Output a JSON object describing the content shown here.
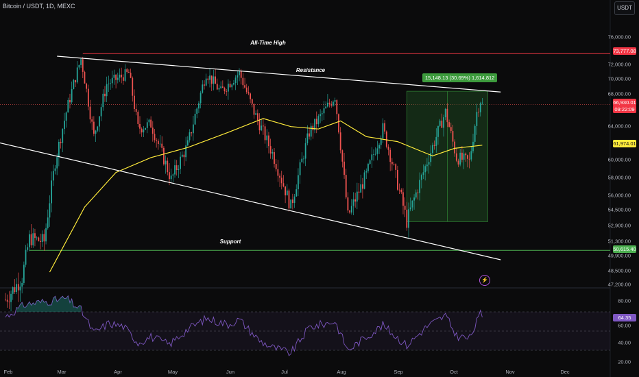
{
  "header": {
    "title": "Bitcoin / USDT, 1D, MEXC",
    "currency": "USDT"
  },
  "annotations": {
    "ath": "All-Time High",
    "resistance": "Resistance",
    "support": "Support",
    "measure": "15,148.13 (30.69%) 1,614,812"
  },
  "price_badges": {
    "ath": "73,777.08",
    "last": "66,930.01",
    "countdown": "09:22:09",
    "ma": "61,974.01",
    "support": "50,615.40",
    "rsi": "64.35"
  },
  "colors": {
    "up": "#26a69a",
    "down": "#ef5350",
    "ma": "#ffeb3b",
    "ath_line": "#f23645",
    "support_line": "#4caf50",
    "rsi_line": "#7e57c2",
    "measure_box": "#2e7d32"
  },
  "chart_data": [
    {
      "type": "candlestick",
      "title": "Bitcoin / USDT, 1D, MEXC",
      "x_tick_labels": [
        "Feb",
        "Mar",
        "Apr",
        "May",
        "Jun",
        "Jul",
        "Aug",
        "Sep",
        "Oct",
        "Nov",
        "Dec"
      ],
      "y_tick_labels": [
        "76,000.00",
        "72,000.00",
        "70,000.00",
        "68,000.00",
        "64,000.00",
        "60,000.00",
        "58,000.00",
        "56,000.00",
        "54,500.00",
        "52,900.00",
        "51,300.00",
        "49,900.00",
        "48,500.00",
        "47,200.00"
      ],
      "close_path": [
        [
          "2024-02-01",
          46000
        ],
        [
          "2024-02-10",
          48000
        ],
        [
          "2024-02-14",
          51800
        ],
        [
          "2024-02-22",
          51500
        ],
        [
          "2024-02-28",
          60000
        ],
        [
          "2024-03-05",
          66000
        ],
        [
          "2024-03-13",
          73000
        ],
        [
          "2024-03-20",
          63000
        ],
        [
          "2024-03-27",
          69500
        ],
        [
          "2024-04-08",
          71000
        ],
        [
          "2024-04-13",
          64000
        ],
        [
          "2024-04-20",
          64500
        ],
        [
          "2024-05-01",
          58000
        ],
        [
          "2024-05-10",
          62000
        ],
        [
          "2024-05-20",
          71000
        ],
        [
          "2024-05-28",
          68500
        ],
        [
          "2024-06-07",
          71000
        ],
        [
          "2024-06-15",
          66000
        ],
        [
          "2024-06-25",
          61000
        ],
        [
          "2024-07-05",
          55000
        ],
        [
          "2024-07-15",
          63500
        ],
        [
          "2024-07-29",
          68000
        ],
        [
          "2024-08-05",
          54000
        ],
        [
          "2024-08-15",
          58500
        ],
        [
          "2024-08-24",
          64000
        ],
        [
          "2024-09-06",
          53500
        ],
        [
          "2024-09-17",
          60000
        ],
        [
          "2024-09-27",
          66000
        ],
        [
          "2024-10-03",
          60500
        ],
        [
          "2024-10-10",
          60000
        ],
        [
          "2024-10-14",
          66000
        ],
        [
          "2024-10-16",
          67500
        ],
        [
          "2024-10-17",
          66930
        ]
      ],
      "moving_average": [
        [
          "2024-02-25",
          48500
        ],
        [
          "2024-03-15",
          55000
        ],
        [
          "2024-04-01",
          58800
        ],
        [
          "2024-04-20",
          60500
        ],
        [
          "2024-05-10",
          61700
        ],
        [
          "2024-06-01",
          63500
        ],
        [
          "2024-06-20",
          65200
        ],
        [
          "2024-07-05",
          64200
        ],
        [
          "2024-07-20",
          63900
        ],
        [
          "2024-08-01",
          64900
        ],
        [
          "2024-08-15",
          63000
        ],
        [
          "2024-09-01",
          62400
        ],
        [
          "2024-09-20",
          60700
        ],
        [
          "2024-10-02",
          61600
        ],
        [
          "2024-10-17",
          61974
        ]
      ],
      "levels": {
        "all_time_high": 73777.08,
        "last_price": 66930.01,
        "support": 50615.4
      },
      "trendlines": {
        "resistance": [
          [
            "2024-02-29",
            73400
          ],
          [
            "2024-10-27",
            68500
          ]
        ],
        "lower": [
          [
            "2024-01-24",
            62500
          ],
          [
            "2024-10-27",
            49700
          ]
        ]
      },
      "measure_range": {
        "from_date": "2024-09-06",
        "to_date": "2024-10-20",
        "low": 53500,
        "high": 68600
      }
    },
    {
      "type": "line",
      "title": "RSI",
      "y_tick_labels": [
        "80.00",
        "60.00",
        "40.00",
        "20.00"
      ],
      "bands": [
        70,
        50,
        30
      ],
      "values": [
        [
          "2024-02-01",
          65
        ],
        [
          "2024-02-12",
          78
        ],
        [
          "2024-02-20",
          80
        ],
        [
          "2024-02-28",
          82
        ],
        [
          "2024-03-05",
          84
        ],
        [
          "2024-03-13",
          72
        ],
        [
          "2024-03-20",
          48
        ],
        [
          "2024-03-28",
          58
        ],
        [
          "2024-04-05",
          55
        ],
        [
          "2024-04-13",
          38
        ],
        [
          "2024-04-20",
          44
        ],
        [
          "2024-04-30",
          36
        ],
        [
          "2024-05-10",
          52
        ],
        [
          "2024-05-20",
          63
        ],
        [
          "2024-06-01",
          57
        ],
        [
          "2024-06-07",
          62
        ],
        [
          "2024-06-18",
          40
        ],
        [
          "2024-06-25",
          33
        ],
        [
          "2024-07-05",
          27
        ],
        [
          "2024-07-15",
          54
        ],
        [
          "2024-07-29",
          60
        ],
        [
          "2024-08-05",
          30
        ],
        [
          "2024-08-15",
          44
        ],
        [
          "2024-08-24",
          56
        ],
        [
          "2024-09-06",
          35
        ],
        [
          "2024-09-17",
          55
        ],
        [
          "2024-09-27",
          66
        ],
        [
          "2024-10-03",
          45
        ],
        [
          "2024-10-10",
          42
        ],
        [
          "2024-10-16",
          68
        ],
        [
          "2024-10-17",
          64.35
        ]
      ]
    }
  ]
}
